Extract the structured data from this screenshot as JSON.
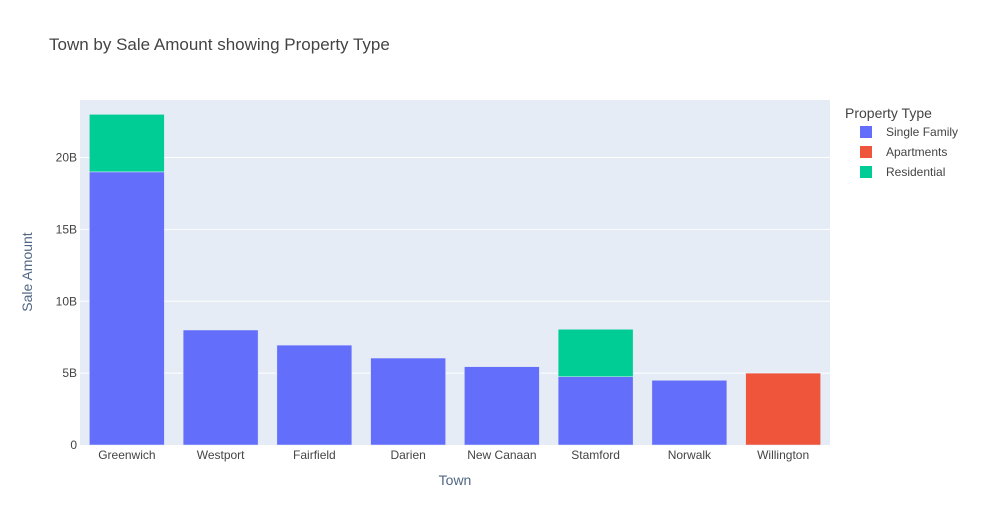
{
  "chart_data": {
    "type": "bar",
    "stacked": true,
    "title": "Town by Sale Amount showing Property Type",
    "xlabel": "Town",
    "ylabel": "Sale Amount",
    "ylim": [
      0,
      24000000000
    ],
    "yticks": [
      0,
      5000000000,
      10000000000,
      15000000000,
      20000000000
    ],
    "ytick_labels": [
      "0",
      "5B",
      "10B",
      "15B",
      "20B"
    ],
    "grid": true,
    "legend_title": "Property Type",
    "legend_position": "right",
    "categories": [
      "Greenwich",
      "Westport",
      "Fairfield",
      "Darien",
      "New Canaan",
      "Stamford",
      "Norwalk",
      "Willington"
    ],
    "series": [
      {
        "name": "Single Family",
        "color": "#636efa",
        "values": [
          19000000000,
          8000000000,
          6950000000,
          6050000000,
          5450000000,
          4750000000,
          4500000000,
          0
        ]
      },
      {
        "name": "Apartments",
        "color": "#ef553b",
        "values": [
          0,
          0,
          0,
          0,
          0,
          0,
          0,
          5000000000
        ]
      },
      {
        "name": "Residential",
        "color": "#00cc96",
        "values": [
          4000000000,
          0,
          0,
          0,
          0,
          3300000000,
          0,
          0
        ]
      }
    ]
  },
  "colors": {
    "plot_background": "#e5ecf6",
    "gridline": "#ffffff"
  }
}
